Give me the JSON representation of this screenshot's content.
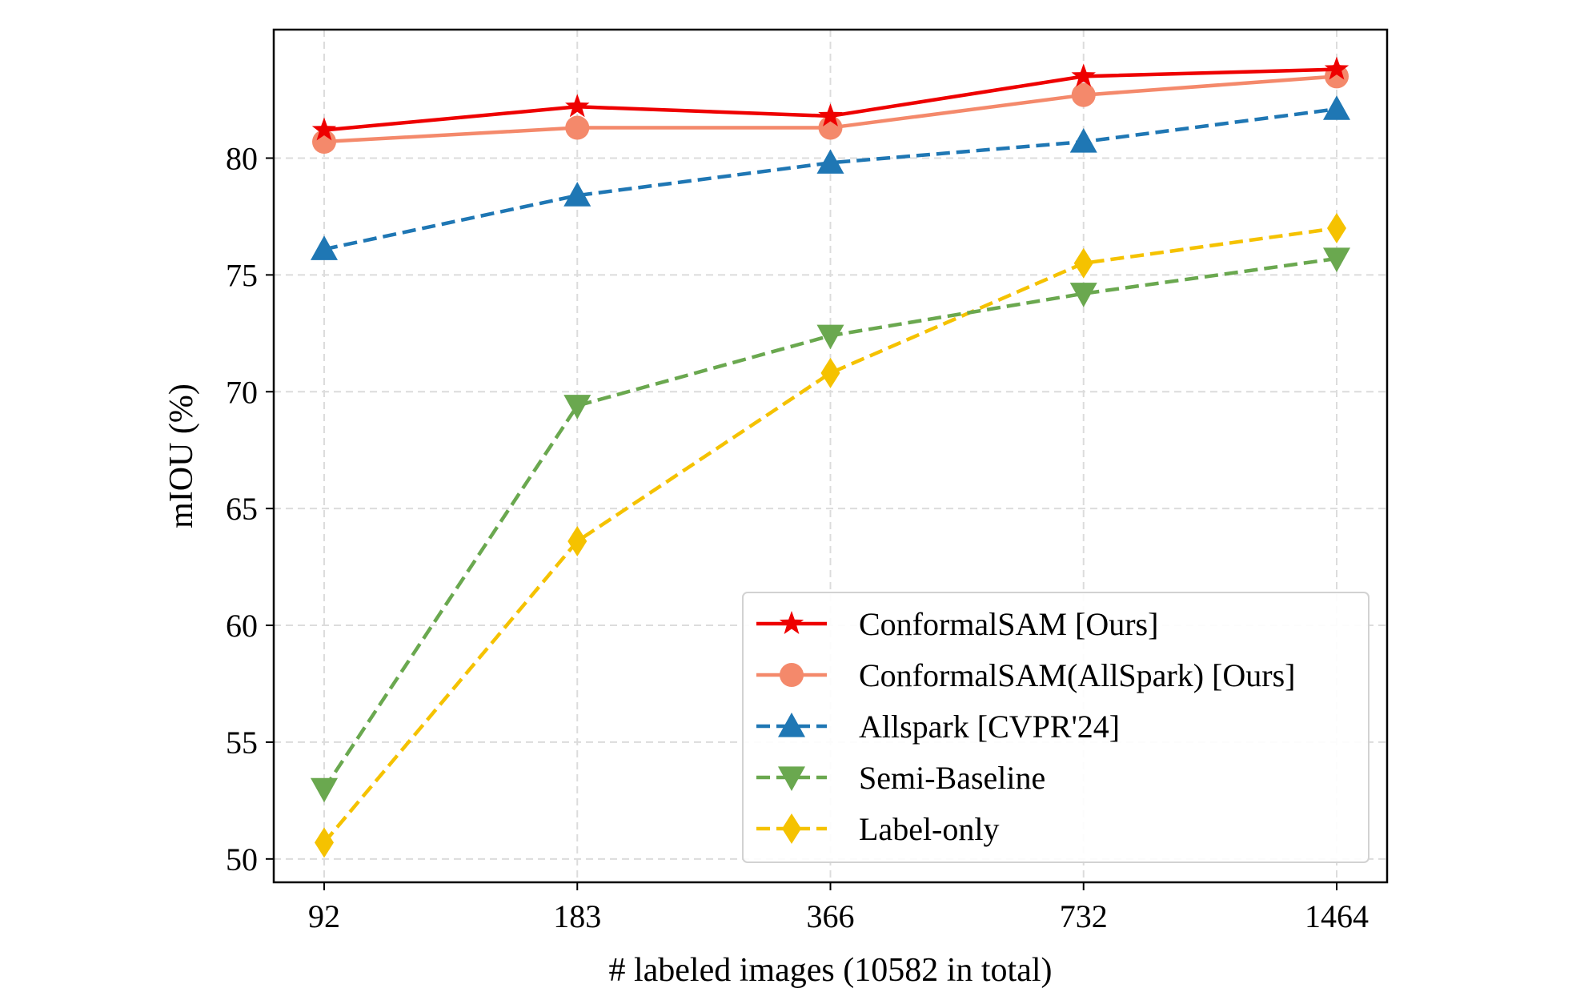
{
  "chart_data": {
    "type": "line",
    "title": "",
    "xlabel": "# labeled images (10582 in total)",
    "ylabel": "mIOU (%)",
    "categories": [
      "92",
      "183",
      "366",
      "732",
      "1464"
    ],
    "y_ticks": [
      50,
      55,
      60,
      65,
      70,
      75,
      80
    ],
    "ylim": [
      49,
      85.5
    ],
    "grid": true,
    "legend_position": "lower-right",
    "series": [
      {
        "name": "ConformalSAM [Ours]",
        "values": [
          81.2,
          82.2,
          81.8,
          83.5,
          83.8
        ],
        "color": "#ee0000",
        "line_style": "solid",
        "marker": "star"
      },
      {
        "name": "ConformalSAM(AllSpark) [Ours]",
        "values": [
          80.7,
          81.3,
          81.3,
          82.7,
          83.5
        ],
        "color": "#f4896b",
        "line_style": "solid",
        "marker": "circle"
      },
      {
        "name": "Allspark [CVPR'24]",
        "values": [
          76.1,
          78.4,
          79.8,
          80.7,
          82.1
        ],
        "color": "#1f77b4",
        "line_style": "dashed",
        "marker": "triangle-up"
      },
      {
        "name": "Semi-Baseline",
        "values": [
          53.0,
          69.4,
          72.4,
          74.2,
          75.7
        ],
        "color": "#6aa84f",
        "line_style": "dashed",
        "marker": "triangle-down"
      },
      {
        "name": "Label-only",
        "values": [
          50.7,
          63.6,
          70.8,
          75.5,
          77.0
        ],
        "color": "#f5c200",
        "line_style": "dashed",
        "marker": "diamond"
      }
    ]
  }
}
